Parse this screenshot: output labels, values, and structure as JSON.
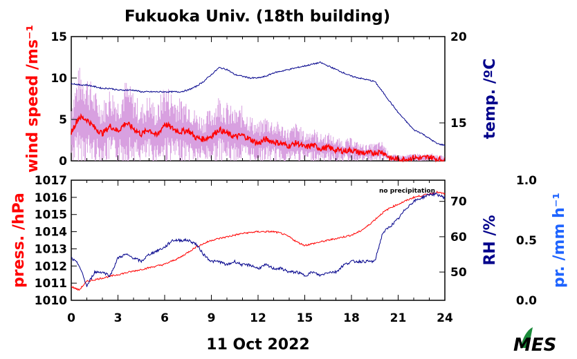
{
  "title": "Fukuoka Univ. (18th building)",
  "date_label": "11 Oct 2022",
  "colors": {
    "wind": "#ff0000",
    "wind_raw": "#d8a0e0",
    "temp": "#00008b",
    "pressure": "#ff0000",
    "rh": "#00008b",
    "precip": "#1e64ff"
  },
  "logo_text": "MES",
  "chart_data": [
    {
      "type": "line",
      "panel": "top",
      "xlim": [
        0,
        24
      ],
      "xticks": [
        "0",
        "3",
        "6",
        "9",
        "12",
        "15",
        "18",
        "21",
        "24"
      ],
      "ylim_left": [
        0,
        15
      ],
      "yticks_left": [
        "0",
        "5",
        "10",
        "15"
      ],
      "ylabel_left": "wind speed /ms⁻¹",
      "ylim_right": [
        12.8,
        20
      ],
      "yticks_right": [
        "15",
        "20"
      ],
      "ylabel_right": "temp. /ºC",
      "grid": false,
      "series": [
        {
          "axis": "left",
          "x": [
            0,
            0.5,
            1,
            1.5,
            2,
            2.5,
            3,
            3.5,
            4,
            4.5,
            5,
            5.5,
            6,
            6.5,
            7,
            7.5,
            8,
            8.5,
            9,
            9.5,
            10,
            10.5,
            11,
            11.5,
            12,
            12.5,
            13,
            13.5,
            14,
            14.5,
            15,
            15.5,
            16,
            16.5,
            17,
            17.5,
            18,
            18.5,
            19,
            19.5,
            20,
            20.5,
            21,
            21.5,
            22,
            22.5,
            23,
            23.5,
            24
          ],
          "values": [
            3.5,
            5.3,
            5.0,
            4.0,
            3.3,
            4.2,
            3.6,
            4.6,
            3.9,
            3.2,
            3.8,
            3.0,
            4.5,
            3.9,
            3.5,
            3.7,
            2.8,
            2.6,
            3.0,
            3.8,
            3.3,
            2.9,
            3.1,
            2.6,
            2.1,
            2.6,
            2.3,
            2.1,
            1.8,
            2.2,
            1.6,
            1.9,
            1.5,
            1.6,
            1.3,
            1.2,
            1.3,
            1.0,
            0.9,
            1.0,
            1.1,
            0.3,
            0.2,
            0.2,
            0.4,
            0.3,
            0.5,
            0.2,
            0.1
          ]
        },
        {
          "axis": "right",
          "x": [
            0,
            0.5,
            1,
            1.5,
            2,
            2.5,
            3,
            3.5,
            4,
            4.5,
            5,
            5.5,
            6,
            6.5,
            7,
            7.5,
            8,
            8.5,
            9,
            9.5,
            10,
            10.5,
            11,
            11.5,
            12,
            12.5,
            13,
            13.5,
            14,
            14.5,
            15,
            15.5,
            16,
            16.5,
            17,
            17.5,
            18,
            18.5,
            19,
            19.5,
            20,
            20.5,
            21,
            21.5,
            22,
            22.5,
            23,
            23.5,
            24
          ],
          "values": [
            17.3,
            17.2,
            17.2,
            17.1,
            17.0,
            17.0,
            16.9,
            16.9,
            16.9,
            16.8,
            16.8,
            16.8,
            16.8,
            16.8,
            16.8,
            16.9,
            17.1,
            17.4,
            17.8,
            18.2,
            18.1,
            17.8,
            17.7,
            17.6,
            17.6,
            17.7,
            17.9,
            18.0,
            18.1,
            18.2,
            18.3,
            18.4,
            18.5,
            18.3,
            18.1,
            17.9,
            17.7,
            17.6,
            17.5,
            17.4,
            16.8,
            16.2,
            15.6,
            15.1,
            14.6,
            14.4,
            14.1,
            13.8,
            13.7
          ]
        }
      ]
    },
    {
      "type": "line",
      "panel": "bottom",
      "xlim": [
        0,
        24
      ],
      "xticks": [
        "0",
        "3",
        "6",
        "9",
        "12",
        "15",
        "18",
        "21",
        "24"
      ],
      "ylim_left": [
        1010,
        1017
      ],
      "yticks_left": [
        "1010",
        "1011",
        "1012",
        "1013",
        "1014",
        "1015",
        "1016",
        "1017"
      ],
      "ylabel_left": "press. /hPa",
      "ylim_right": [
        42,
        76
      ],
      "yticks_right": [
        "50",
        "60",
        "70"
      ],
      "ylabel_right": "RH /%",
      "ylim_far_right": [
        0.0,
        1.0
      ],
      "yticks_far_right": [
        "0.0",
        "0.5",
        "1.0"
      ],
      "ylabel_far_right": "pr. /mm h⁻¹",
      "annotation": "no precipitation",
      "grid": false,
      "series": [
        {
          "axis": "left",
          "x": [
            0,
            0.5,
            1,
            1.5,
            2,
            2.5,
            3,
            3.5,
            4,
            4.5,
            5,
            5.5,
            6,
            6.5,
            7,
            7.5,
            8,
            8.5,
            9,
            9.5,
            10,
            10.5,
            11,
            11.5,
            12,
            12.5,
            13,
            13.5,
            14,
            14.5,
            15,
            15.5,
            16,
            16.5,
            17,
            17.5,
            18,
            18.5,
            19,
            19.5,
            20,
            20.5,
            21,
            21.5,
            22,
            22.5,
            23,
            23.5,
            24
          ],
          "values": [
            1010.8,
            1010.6,
            1011.1,
            1011.2,
            1011.3,
            1011.4,
            1011.5,
            1011.6,
            1011.7,
            1011.8,
            1011.9,
            1012.0,
            1012.1,
            1012.3,
            1012.5,
            1012.8,
            1013.1,
            1013.3,
            1013.5,
            1013.6,
            1013.7,
            1013.8,
            1013.9,
            1013.95,
            1014.0,
            1014.0,
            1014.0,
            1013.9,
            1013.7,
            1013.4,
            1013.2,
            1013.3,
            1013.4,
            1013.5,
            1013.6,
            1013.7,
            1013.8,
            1014.0,
            1014.3,
            1014.7,
            1015.1,
            1015.4,
            1015.6,
            1015.8,
            1016.0,
            1016.1,
            1016.2,
            1016.3,
            1016.2
          ]
        },
        {
          "axis": "right",
          "x": [
            0,
            0.5,
            1,
            1.5,
            2,
            2.5,
            3,
            3.5,
            4,
            4.5,
            5,
            5.5,
            6,
            6.5,
            7,
            7.5,
            8,
            8.5,
            9,
            9.5,
            10,
            10.5,
            11,
            11.5,
            12,
            12.5,
            13,
            13.5,
            14,
            14.5,
            15,
            15.5,
            16,
            16.5,
            17,
            17.5,
            18,
            18.5,
            19,
            19.5,
            20,
            20.5,
            21,
            21.5,
            22,
            22.5,
            23,
            23.5,
            24
          ],
          "values": [
            54,
            52,
            46,
            50,
            50,
            49,
            54,
            55,
            54,
            53,
            55,
            56,
            57,
            59,
            59,
            59,
            58,
            55,
            53,
            53,
            52,
            53,
            52,
            52,
            51,
            52,
            51,
            51,
            50,
            50,
            49,
            50,
            49,
            50,
            50,
            52,
            53,
            53,
            53,
            53,
            61,
            63,
            65,
            68,
            70,
            71,
            72,
            72,
            71
          ]
        }
      ]
    }
  ]
}
